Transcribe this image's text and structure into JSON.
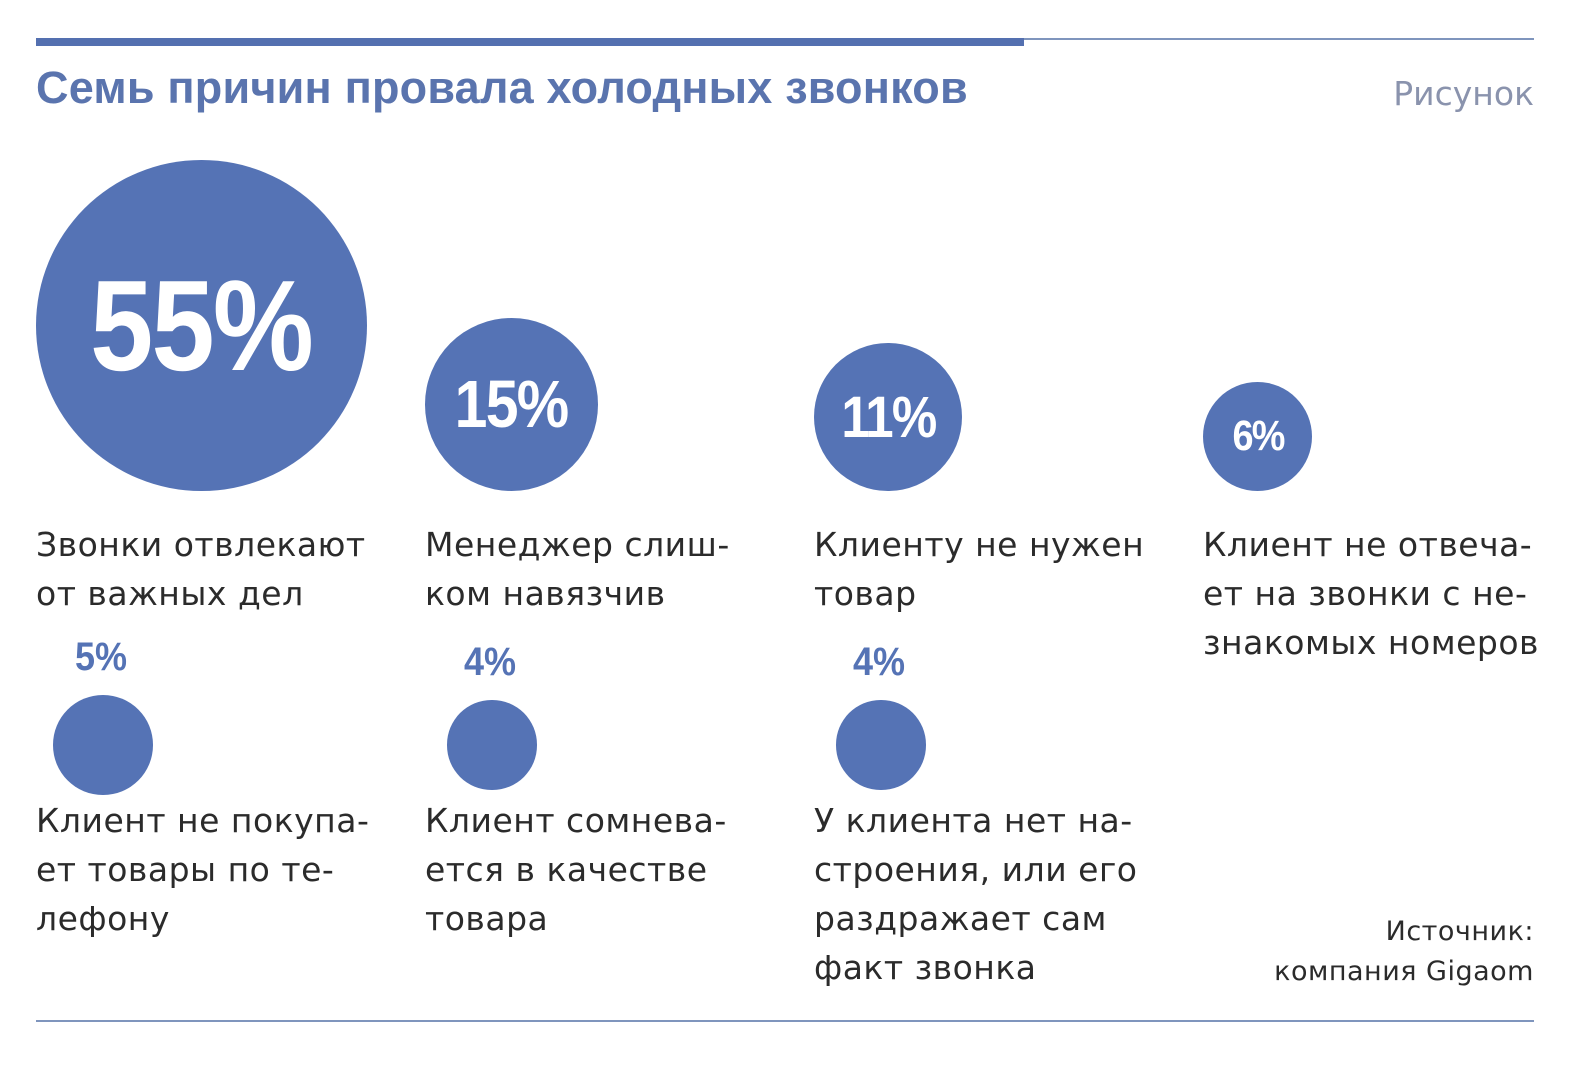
{
  "header": {
    "title": "Семь причин провала холодных звонков",
    "figure_label": "Рисунок"
  },
  "source": "Источник:\nкомпания Gigaom",
  "chart_data": {
    "type": "bubble",
    "title": "Семь причин провала холодных звонков",
    "unit": "%",
    "items": [
      {
        "value": 55,
        "label": "55%",
        "text": "Звонки отвлекают\nот важных дел"
      },
      {
        "value": 15,
        "label": "15%",
        "text": "Менеджер слиш-\nком навязчив"
      },
      {
        "value": 11,
        "label": "11%",
        "text": "Клиенту не нужен\nтовар"
      },
      {
        "value": 6,
        "label": "6%",
        "text": "Клиент не отвеча-\nет на звонки с не-\nзнакомых номеров"
      },
      {
        "value": 5,
        "label": "5%",
        "text": "Клиент не покупа-\nет товары по те-\nлефону"
      },
      {
        "value": 4,
        "label": "4%",
        "text": "Клиент сомнева-\nется в качестве\nтовара"
      },
      {
        "value": 4,
        "label": "4%",
        "text": "У клиента нет на-\nстроения, или его\nраздражает сам\nфакт звонка"
      }
    ]
  },
  "colors": {
    "accent": "#5573b5",
    "title": "#5a74ae",
    "rule": "#7f95bd"
  }
}
